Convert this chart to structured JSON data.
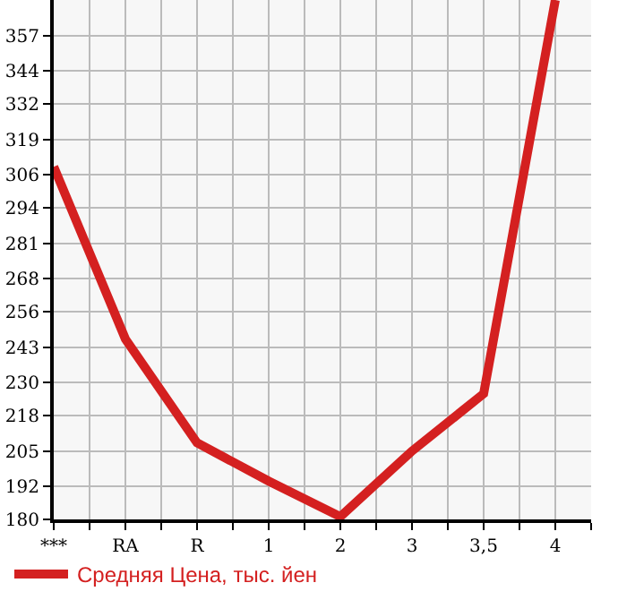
{
  "chart_data": {
    "type": "line",
    "categories": [
      "***",
      "RA",
      "R",
      "1",
      "2",
      "3",
      "3,5",
      "4"
    ],
    "series": [
      {
        "name": "Средняя Цена, тыс. йен",
        "color": "#d42020",
        "values": [
          309,
          246,
          208,
          194,
          181,
          205,
          226,
          370
        ]
      }
    ],
    "ylim": [
      180,
      370
    ],
    "yticks": [
      180,
      192,
      205,
      218,
      230,
      243,
      256,
      268,
      281,
      294,
      306,
      319,
      332,
      344,
      357
    ],
    "grid": true,
    "legend": "bottom",
    "marker": "none",
    "line_style": "solid"
  }
}
